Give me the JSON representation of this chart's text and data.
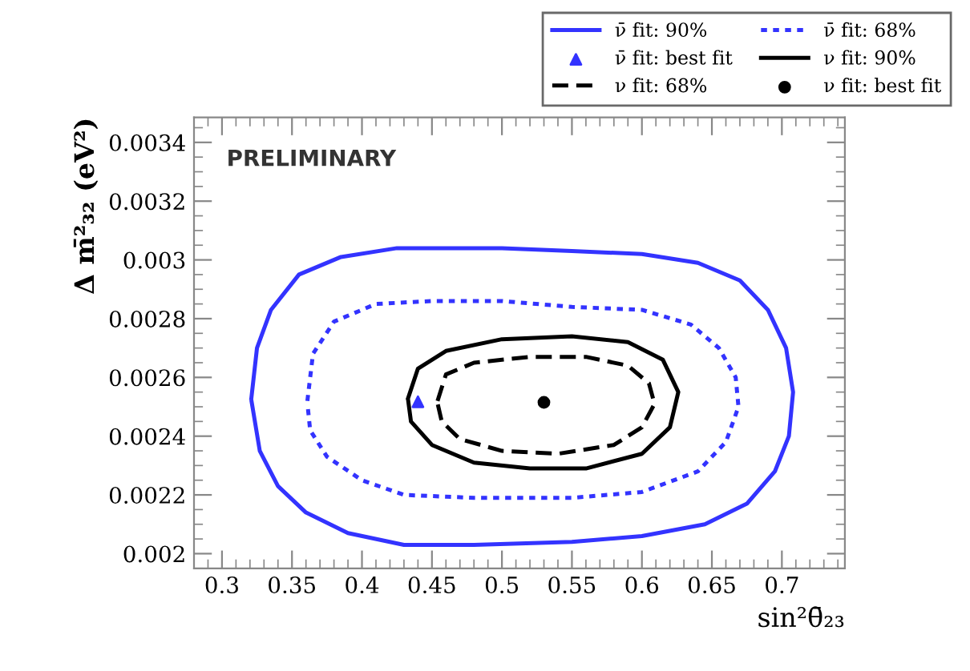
{
  "chart_data": {
    "type": "line",
    "xlabel": "sin²θ̄₂₃",
    "ylabel": "Δ m̄²₃₂ (eV²)",
    "xlim": [
      0.28,
      0.745
    ],
    "ylim": [
      0.00195,
      0.003485
    ],
    "xticks": [
      0.3,
      0.35,
      0.4,
      0.45,
      0.5,
      0.55,
      0.6,
      0.65,
      0.7
    ],
    "yticks": [
      0.002,
      0.0022,
      0.0024,
      0.0026,
      0.0028,
      0.003,
      0.0032,
      0.0034
    ],
    "grid": false,
    "legend": "top right",
    "annotations": [
      "PRELIMINARY"
    ],
    "series": [
      {
        "name": "ν̄ fit: 90%",
        "line_style": "solid",
        "marker": "none",
        "color": "#3333ff",
        "x": [
          0.321,
          0.325,
          0.335,
          0.355,
          0.385,
          0.425,
          0.5,
          0.55,
          0.6,
          0.64,
          0.67,
          0.69,
          0.703,
          0.708,
          0.705,
          0.695,
          0.675,
          0.645,
          0.6,
          0.55,
          0.48,
          0.43,
          0.39,
          0.36,
          0.34,
          0.327,
          0.321
        ],
        "values": [
          0.00253,
          0.0027,
          0.00283,
          0.00295,
          0.00301,
          0.00304,
          0.00304,
          0.00303,
          0.00302,
          0.00299,
          0.00293,
          0.00283,
          0.0027,
          0.00255,
          0.0024,
          0.00228,
          0.00217,
          0.0021,
          0.00206,
          0.00204,
          0.00203,
          0.00203,
          0.00207,
          0.00214,
          0.00223,
          0.00235,
          0.002522
        ]
      },
      {
        "name": "ν̄ fit: 68%",
        "line_style": "dotted",
        "marker": "none",
        "color": "#3333ff",
        "x": [
          0.361,
          0.365,
          0.38,
          0.41,
          0.45,
          0.5,
          0.55,
          0.6,
          0.635,
          0.655,
          0.667,
          0.669,
          0.66,
          0.64,
          0.6,
          0.55,
          0.48,
          0.43,
          0.4,
          0.375,
          0.363,
          0.361
        ],
        "values": [
          0.00252,
          0.00268,
          0.00279,
          0.00285,
          0.00286,
          0.00286,
          0.00284,
          0.00283,
          0.00278,
          0.0027,
          0.0026,
          0.0025,
          0.00238,
          0.00228,
          0.00221,
          0.00219,
          0.00219,
          0.0022,
          0.00225,
          0.00233,
          0.00242,
          0.002512
        ]
      },
      {
        "name": "ν̄ fit: best fit",
        "type": "scatter",
        "marker": "triangle",
        "color": "#3333ff",
        "x": [
          0.44
        ],
        "values": [
          0.002517
        ]
      },
      {
        "name": "ν fit: 90%",
        "line_style": "solid",
        "marker": "none",
        "color": "#000000",
        "x": [
          0.433,
          0.44,
          0.46,
          0.5,
          0.55,
          0.59,
          0.615,
          0.626,
          0.62,
          0.6,
          0.56,
          0.52,
          0.48,
          0.45,
          0.435,
          0.433
        ],
        "values": [
          0.00253,
          0.00263,
          0.00269,
          0.00273,
          0.00274,
          0.00272,
          0.00266,
          0.00255,
          0.00243,
          0.00234,
          0.00229,
          0.00229,
          0.00231,
          0.00237,
          0.00245,
          0.002522
        ]
      },
      {
        "name": "ν fit: 68%",
        "line_style": "dashed",
        "marker": "none",
        "color": "#000000",
        "x": [
          0.454,
          0.46,
          0.48,
          0.52,
          0.56,
          0.59,
          0.605,
          0.609,
          0.6,
          0.58,
          0.54,
          0.5,
          0.47,
          0.457,
          0.454
        ],
        "values": [
          0.00252,
          0.00261,
          0.00265,
          0.00267,
          0.00267,
          0.00264,
          0.00258,
          0.00251,
          0.00243,
          0.00237,
          0.00234,
          0.00235,
          0.00239,
          0.00245,
          0.002512
        ]
      },
      {
        "name": "ν fit: best fit",
        "type": "scatter",
        "marker": "circle",
        "color": "#000000",
        "x": [
          0.53
        ],
        "values": [
          0.002515
        ]
      }
    ]
  }
}
